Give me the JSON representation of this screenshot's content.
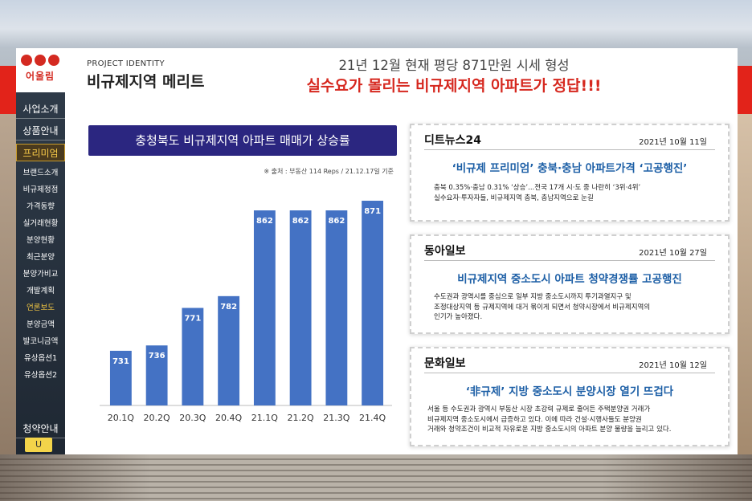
{
  "sidebar": {
    "logo_text": "어울림",
    "major_items": [
      {
        "label": "사업소개"
      },
      {
        "label": "상품안내"
      },
      {
        "label": "프리미엄"
      },
      {
        "label": "청약안내"
      }
    ],
    "minor_items": [
      {
        "label": "브랜드소개"
      },
      {
        "label": "비규제정점"
      },
      {
        "label": "가격동향"
      },
      {
        "label": "실거래현황"
      },
      {
        "label": "분양현황"
      },
      {
        "label": "최근분양"
      },
      {
        "label": "분양가비교"
      },
      {
        "label": "개발계획"
      },
      {
        "label": "언론보도"
      },
      {
        "label": "분양금액"
      },
      {
        "label": "발코니금액"
      },
      {
        "label": "유상옵션1"
      },
      {
        "label": "유상옵션2"
      }
    ],
    "active_major": "프리미엄",
    "active_minor": "언론보도",
    "handle_icon": "U"
  },
  "header": {
    "project_label": "PROJECT IDENTITY",
    "page_title": "비규제지역 메리트",
    "headline": "21년 12월 현재 평당 871만원 시세 형성",
    "subheadline": "실수요가 몰리는 비규제지역 아파트가 정답!!!"
  },
  "chart_panel": {
    "title": "충청북도 비규제지역 아파트 매매가 상승률",
    "source": "※ 출처 : 부동산 114 Reps / 21.12.17일 기준"
  },
  "chart_data": {
    "type": "bar",
    "categories": [
      "20.1Q",
      "20.2Q",
      "20.3Q",
      "20.4Q",
      "21.1Q",
      "21.2Q",
      "21.3Q",
      "21.4Q"
    ],
    "values": [
      731,
      736,
      771,
      782,
      862,
      862,
      862,
      871
    ],
    "title": "충청북도 비규제지역 아파트 매매가 상승률",
    "xlabel": "",
    "ylabel": "",
    "ylim": [
      680,
      880
    ],
    "grid": false,
    "bar_color": "#4472c4",
    "data_labels": true
  },
  "news": [
    {
      "source": "디트뉴스24",
      "date": "2021년 10월 11일",
      "headline": "‘비규제 프리미엄’ 충북·충남 아파트가격 ‘고공행진’",
      "body": [
        "충북 0.35%·충남 0.31% ‘상승’...전국 17개 시·도 중 나란히 ‘3위·4위’",
        "실수요자·투자자들, 비규제지역 충북, 충남지역으로 눈길"
      ]
    },
    {
      "source": "동아일보",
      "date": "2021년 10월 27일",
      "headline": "비규제지역 중소도시 아파트 청약경쟁률 고공행진",
      "body": [
        "수도권과 광역시를 중심으로 일부 지방 중소도시까지 투기과열지구 및",
        "조정대상지역 등 규제지역에 대거 묶이게 되면서 청약시장에서 비규제지역의",
        "인기가 높아졌다."
      ]
    },
    {
      "source": "문화일보",
      "date": "2021년 10월 12일",
      "headline": "‘非규제’ 지방 중소도시 분양시장 열기 뜨겁다",
      "body": [
        "서울 등 수도권과 광역시 부동산 시장 초강력 규제로 줄어든 주택분양권 거래가",
        "비규제지역 중소도시에서 급증하고 있다. 이에 따라 건설·시행사들도 분양권",
        "거래와 청약조건이 비교적 자유로운 지방 중소도시의 아파트 분양 물량을 늘리고 있다."
      ]
    }
  ]
}
